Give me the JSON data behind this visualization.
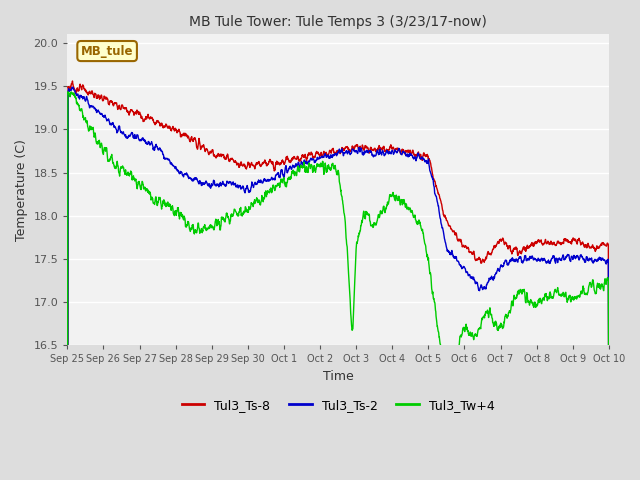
{
  "title": "MB Tule Tower: Tule Temps 3 (3/23/17-now)",
  "xlabel": "Time",
  "ylabel": "Temperature (C)",
  "ylim": [
    16.5,
    20.1
  ],
  "series": {
    "Tul3_Ts-8": {
      "color": "#cc0000"
    },
    "Tul3_Ts-2": {
      "color": "#0000cc"
    },
    "Tul3_Tw+4": {
      "color": "#00cc00"
    }
  },
  "xtick_labels": [
    "Sep 25",
    "Sep 26",
    "Sep 27",
    "Sep 28",
    "Sep 29",
    "Sep 30",
    "Oct 1",
    "Oct 2",
    "Oct 3",
    "Oct 4",
    "Oct 5",
    "Oct 6",
    "Oct 7",
    "Oct 8",
    "Oct 9",
    "Oct 10"
  ],
  "ytick_labels": [
    16.5,
    17.0,
    17.5,
    18.0,
    18.5,
    19.0,
    19.5,
    20.0
  ],
  "bg_color": "#dddddd",
  "plot_bg_color": "#f2f2f2",
  "watermark_text": "MB_tule",
  "watermark_bg": "#ffffcc",
  "watermark_border": "#996600"
}
